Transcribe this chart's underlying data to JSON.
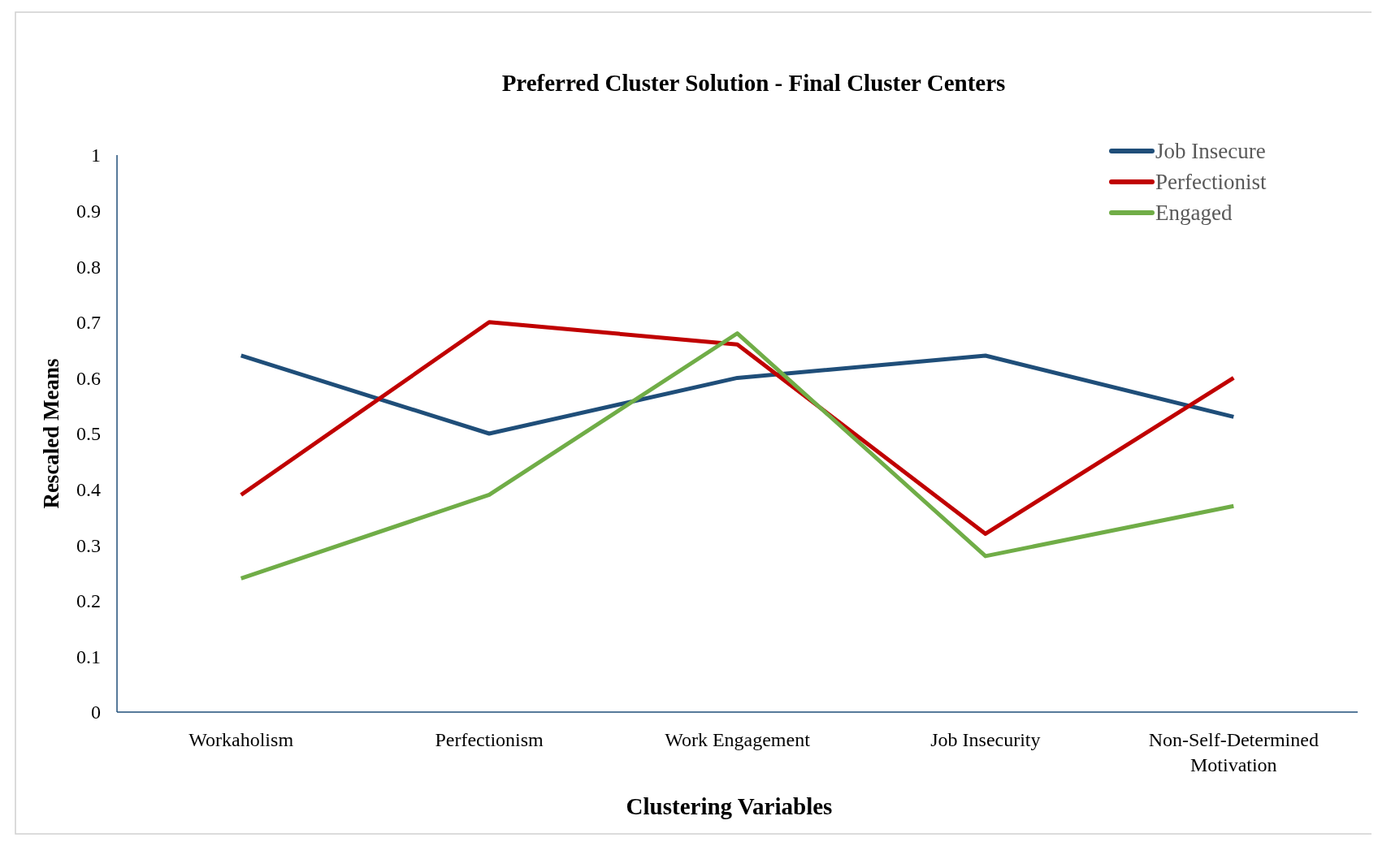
{
  "chart_data": {
    "type": "line",
    "title": "Preferred Cluster Solution - Final Cluster Centers",
    "xlabel": "Clustering Variables",
    "ylabel": "Rescaled Means",
    "categories": [
      "Workaholism",
      "Perfectionism",
      "Work Engagement",
      "Job Insecurity",
      "Non-Self-Determined Motivation"
    ],
    "series": [
      {
        "name": "Job Insecure",
        "color": "#1f4e79",
        "values": [
          0.64,
          0.5,
          0.6,
          0.64,
          0.53
        ]
      },
      {
        "name": "Perfectionist",
        "color": "#c00000",
        "values": [
          0.39,
          0.7,
          0.66,
          0.32,
          0.6
        ]
      },
      {
        "name": "Engaged",
        "color": "#70ad47",
        "values": [
          0.24,
          0.39,
          0.68,
          0.28,
          0.37
        ]
      }
    ],
    "ylim": [
      0,
      1
    ],
    "yticks": [
      0,
      0.1,
      0.2,
      0.3,
      0.4,
      0.5,
      0.6,
      0.7,
      0.8,
      0.9,
      1
    ],
    "grid": false,
    "legend": "top right",
    "marker": "none",
    "line_style": "solid"
  }
}
